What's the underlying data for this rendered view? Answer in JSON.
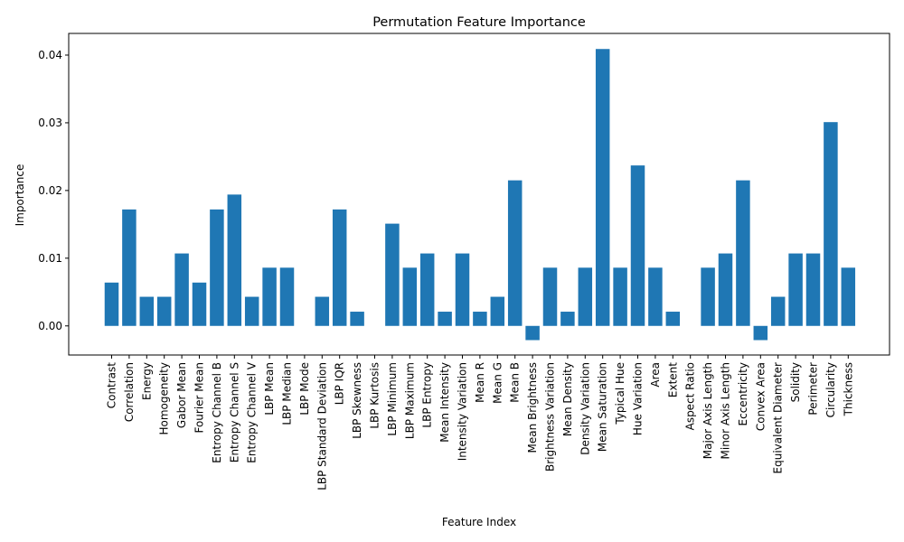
{
  "chart_data": {
    "type": "bar",
    "title": "Permutation Feature Importance",
    "xlabel": "Feature Index",
    "ylabel": "Importance",
    "ylim": [
      -0.0043,
      0.0432
    ],
    "yticks": [
      0.0,
      0.01,
      0.02,
      0.03,
      0.04
    ],
    "ytick_labels": [
      "0.00",
      "0.01",
      "0.02",
      "0.03",
      "0.04"
    ],
    "grid": false,
    "legend": "none",
    "bar_color": "#1f77b4",
    "categories": [
      "Contrast",
      "Correlation",
      "Energy",
      "Homogeneity",
      "Gabor Mean",
      "Fourier Mean",
      "Entropy Channel B",
      "Entropy Channel S",
      "Entropy Channel V",
      "LBP Mean",
      "LBP Median",
      "LBP Mode",
      "LBP Standard Deviation",
      "LBP IQR",
      "LBP Skewness",
      "LBP Kurtosis",
      "LBP Minimum",
      "LBP Maximum",
      "LBP Entropy",
      "Mean Intensity",
      "Intensity Variation",
      "Mean R",
      "Mean G",
      "Mean B",
      "Mean Brightness",
      "Brightness Variation",
      "Mean Density",
      "Density Variation",
      "Mean Saturation",
      "Typical Hue",
      "Hue Variation",
      "Area",
      "Extent",
      "Aspect Ratio",
      "Major Axis Length",
      "Minor Axis Length",
      "Eccentricity",
      "Convex Area",
      "Equivalent Diameter",
      "Solidity",
      "Perimeter",
      "Circularity",
      "Thickness"
    ],
    "values": [
      0.0064,
      0.0172,
      0.0043,
      0.0043,
      0.0107,
      0.0064,
      0.0172,
      0.0194,
      0.0043,
      0.0086,
      0.0086,
      0.0,
      0.0043,
      0.0172,
      0.0021,
      0.0,
      0.0151,
      0.0086,
      0.0107,
      0.0021,
      0.0107,
      0.0021,
      0.0043,
      0.0215,
      -0.0021,
      0.0086,
      0.0021,
      0.0086,
      0.0409,
      0.0086,
      0.0237,
      0.0086,
      0.0021,
      0.0,
      0.0086,
      0.0107,
      0.0215,
      -0.0021,
      0.0043,
      0.0107,
      0.0107,
      0.0301,
      0.0086
    ]
  }
}
